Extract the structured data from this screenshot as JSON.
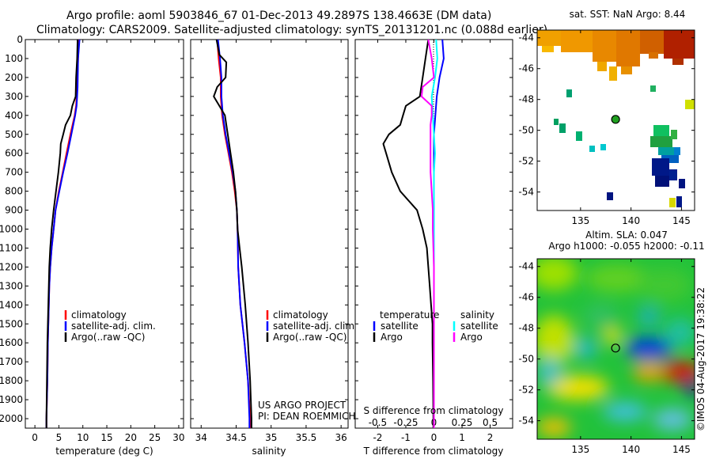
{
  "title_line1": "Argo profile: aoml 5903846_67 01-Dec-2013 49.2897S 138.4663E (DM data)",
  "title_line2": "Climatology: CARS2009. Satellite-adjusted climatology: synTS_20131201.nc (0.088d earlier)",
  "sst_title": "sat. SST: NaN Argo: 8.44",
  "sla_title_line1": "Altim. SLA: 0.047",
  "sla_title_line2": "Argo h1000: -0.055 h2000: -0.11",
  "credit_line1": "US ARGO PROJECT",
  "credit_line2": "PI: DEAN ROEMMICH",
  "imos_stamp": "©IMOS 04-Aug-2017 19:38:22",
  "colors": {
    "climatology": "#ff0000",
    "satellite": "#0000ff",
    "argo": "#000000",
    "satellite_salinity": "#00ffff",
    "argo_salinity": "#ff00ff"
  },
  "chart_data": [
    {
      "name": "temperature",
      "type": "line",
      "xlabel": "temperature (deg C)",
      "xlim": [
        -2,
        31
      ],
      "ylim": [
        2050,
        0
      ],
      "xticks": [
        0,
        5,
        10,
        15,
        20,
        25,
        30
      ],
      "yticks": [
        0,
        100,
        200,
        300,
        400,
        500,
        600,
        700,
        800,
        900,
        1000,
        1100,
        1200,
        1300,
        1400,
        1500,
        1600,
        1700,
        1800,
        1900,
        2000
      ],
      "legend": [
        "climatology",
        "satellite-adj. clim.",
        "Argo(..raw -QC)"
      ],
      "series": [
        {
          "name": "climatology",
          "color": "#ff0000",
          "depth": [
            0,
            100,
            250,
            300,
            350,
            400,
            500,
            600,
            700,
            800,
            900,
            1000,
            1100,
            1200,
            1300,
            1400,
            1600,
            1800,
            2000,
            2050
          ],
          "values": [
            9.2,
            9.0,
            8.8,
            8.7,
            8.6,
            8.3,
            7.4,
            6.6,
            5.8,
            5.0,
            4.3,
            3.9,
            3.5,
            3.2,
            3.0,
            2.9,
            2.7,
            2.6,
            2.4,
            2.4
          ]
        },
        {
          "name": "satellite-adj. clim.",
          "color": "#0000ff",
          "depth": [
            0,
            100,
            250,
            300,
            350,
            400,
            500,
            600,
            700,
            800,
            900,
            1000,
            1100,
            1200,
            1300,
            1400,
            1600,
            1800,
            2000,
            2050
          ],
          "values": [
            9.3,
            9.0,
            8.9,
            8.8,
            8.7,
            8.4,
            7.6,
            6.8,
            5.9,
            5.1,
            4.3,
            3.9,
            3.5,
            3.2,
            3.0,
            2.9,
            2.7,
            2.6,
            2.4,
            2.4
          ]
        },
        {
          "name": "Argo(..raw -QC)",
          "color": "#000000",
          "depth": [
            0,
            100,
            200,
            300,
            350,
            400,
            450,
            500,
            550,
            600,
            650,
            700,
            800,
            900,
            1000,
            1100,
            1200,
            1300,
            1400,
            1600,
            1800,
            2000,
            2050
          ],
          "values": [
            8.9,
            8.8,
            8.6,
            8.5,
            7.8,
            7.4,
            6.4,
            5.9,
            5.4,
            5.3,
            5.1,
            4.9,
            4.4,
            3.9,
            3.5,
            3.2,
            3.0,
            2.9,
            2.8,
            2.6,
            2.5,
            2.4,
            2.4
          ]
        }
      ]
    },
    {
      "name": "salinity",
      "type": "line",
      "xlabel": "salinity",
      "xlim": [
        33.85,
        36.1
      ],
      "ylim": [
        2050,
        0
      ],
      "xticks": [
        34,
        34.5,
        35,
        35.5,
        36
      ],
      "legend": [
        "climatology",
        "satellite-adj. clim.",
        "Argo(..raw -QC)"
      ],
      "series": [
        {
          "name": "climatology",
          "color": "#ff0000",
          "depth": [
            0,
            100,
            200,
            300,
            400,
            500,
            600,
            700,
            800,
            900,
            1000,
            1200,
            1400,
            1600,
            1800,
            2000,
            2050
          ],
          "values": [
            34.23,
            34.25,
            34.28,
            34.28,
            34.3,
            34.34,
            34.39,
            34.44,
            34.48,
            34.51,
            34.52,
            34.53,
            34.56,
            34.62,
            34.67,
            34.7,
            34.7
          ]
        },
        {
          "name": "satellite-adj. clim.",
          "color": "#0000ff",
          "depth": [
            0,
            100,
            200,
            300,
            400,
            500,
            600,
            700,
            800,
            900,
            1000,
            1200,
            1400,
            1600,
            1800,
            2000,
            2050
          ],
          "values": [
            34.24,
            34.27,
            34.29,
            34.29,
            34.31,
            34.35,
            34.4,
            34.45,
            34.49,
            34.51,
            34.52,
            34.53,
            34.56,
            34.62,
            34.67,
            34.69,
            34.69
          ]
        },
        {
          "name": "Argo(..raw -QC)",
          "color": "#000000",
          "depth": [
            0,
            80,
            120,
            200,
            250,
            300,
            350,
            400,
            450,
            500,
            600,
            700,
            800,
            900,
            1000,
            1100,
            1200,
            1400,
            1600,
            1800,
            2000,
            2050
          ],
          "values": [
            34.22,
            34.26,
            34.36,
            34.35,
            34.23,
            34.18,
            34.26,
            34.34,
            34.36,
            34.38,
            34.42,
            34.46,
            34.49,
            34.51,
            34.52,
            34.55,
            34.58,
            34.63,
            34.67,
            34.7,
            34.72,
            34.72
          ]
        }
      ]
    },
    {
      "name": "difference",
      "type": "line",
      "xlabel": "T difference from climatology",
      "xlabel2": "S difference from climatology",
      "xlim": [
        -2.8,
        2.8
      ],
      "ylim": [
        2050,
        0
      ],
      "xticks": [
        -2,
        -1,
        0,
        1,
        2
      ],
      "xticks_s": [
        "-0.5",
        "-0.25",
        "0",
        "0.25",
        "0.5"
      ],
      "legend_temperature_header": "temperature",
      "legend_salinity_header": "salinity",
      "legend": [
        "satellite",
        "Argo",
        "satellite",
        "Argo"
      ],
      "series": [
        {
          "name": "T satellite",
          "color": "#0000ff",
          "depth": [
            0,
            100,
            200,
            300,
            400,
            500,
            600,
            800,
            1000,
            1500,
            2000,
            2050
          ],
          "values": [
            0.3,
            0.35,
            0.2,
            0.1,
            0.05,
            0.0,
            0.0,
            0.0,
            0.0,
            0.0,
            0.0,
            0.0
          ]
        },
        {
          "name": "T Argo",
          "color": "#000000",
          "depth": [
            0,
            100,
            200,
            300,
            350,
            400,
            450,
            500,
            550,
            600,
            700,
            800,
            900,
            1000,
            1100,
            1200,
            1300,
            1400,
            1500,
            1600,
            1800,
            2000,
            2050
          ],
          "values": [
            -0.2,
            -0.3,
            -0.4,
            -0.5,
            -1.0,
            -1.1,
            -1.2,
            -1.6,
            -1.8,
            -1.7,
            -1.5,
            -1.2,
            -0.6,
            -0.4,
            -0.25,
            -0.2,
            -0.15,
            -0.1,
            -0.05,
            -0.05,
            -0.03,
            -0.02,
            -0.02
          ]
        },
        {
          "name": "S satellite",
          "color": "#00ffff",
          "depth": [
            0,
            100,
            200,
            300,
            400,
            500,
            600,
            700,
            800,
            900,
            1000,
            1200,
            1500,
            2000,
            2050
          ],
          "values": [
            0.02,
            0.03,
            0.01,
            -0.02,
            -0.01,
            0.0,
            0.01,
            0.0,
            0.0,
            0.0,
            0.0,
            0.0,
            0.0,
            0.0,
            0.0
          ]
        },
        {
          "name": "S Argo",
          "color": "#ff00ff",
          "depth": [
            0,
            100,
            200,
            250,
            300,
            350,
            400,
            450,
            500,
            600,
            700,
            800,
            900,
            1000,
            1200,
            1500,
            2000,
            2050
          ],
          "values": [
            -0.05,
            -0.02,
            0.0,
            -0.1,
            -0.11,
            -0.02,
            -0.02,
            -0.03,
            -0.03,
            -0.03,
            -0.03,
            -0.02,
            -0.01,
            -0.01,
            0.0,
            0.0,
            0.0,
            0.0
          ]
        }
      ]
    },
    {
      "name": "sst_map",
      "type": "heatmap",
      "xticks": [
        135,
        140,
        145
      ],
      "yticks": [
        -44,
        -46,
        -48,
        -50,
        -52,
        -54
      ],
      "xlim": [
        130.7,
        146.3
      ],
      "ylim": [
        -55.2,
        -43.5
      ],
      "argo_position": [
        138.47,
        -49.29
      ]
    },
    {
      "name": "sla_map",
      "type": "heatmap",
      "xticks": [
        135,
        140,
        145
      ],
      "yticks": [
        -44,
        -46,
        -48,
        -50,
        -52,
        -54
      ],
      "xlim": [
        130.7,
        146.3
      ],
      "ylim": [
        -55.2,
        -43.5
      ],
      "argo_position": [
        138.47,
        -49.29
      ]
    }
  ]
}
